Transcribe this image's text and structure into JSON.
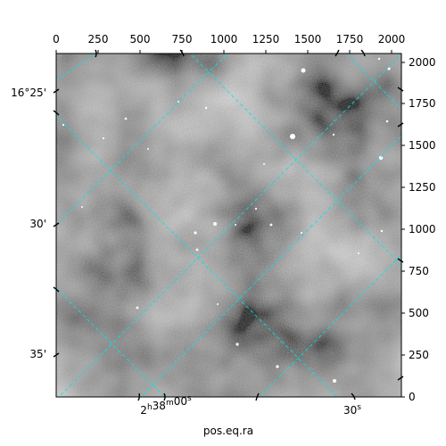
{
  "x_axis_label": "pos.eq.ra",
  "top_axis": {
    "ticks": [
      "0",
      "250",
      "500",
      "750",
      "1000",
      "1250",
      "1500",
      "1750",
      "2000"
    ],
    "range": [
      0,
      2048
    ]
  },
  "right_axis": {
    "ticks": [
      "0",
      "250",
      "500",
      "750",
      "1000",
      "1250",
      "1500",
      "1750",
      "2000"
    ],
    "range": [
      0,
      2048
    ]
  },
  "left_axis": {
    "dec_labels": [
      "16°25'",
      "30'",
      "35'"
    ]
  },
  "bottom_axis": {
    "ra_labels": [
      "2h38m00s",
      "30s"
    ]
  },
  "grid_color": "#00e5e5",
  "colormap": "grayscale"
}
